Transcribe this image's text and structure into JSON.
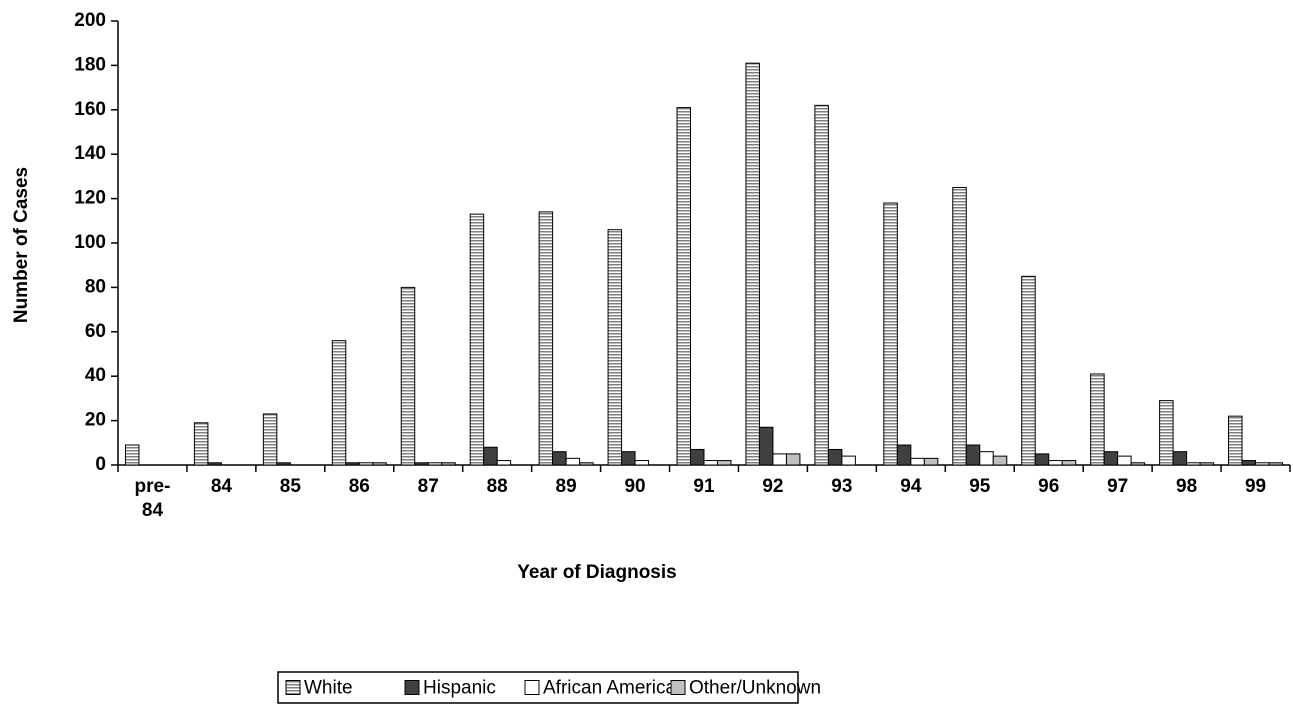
{
  "chart_data": {
    "type": "bar",
    "xlabel": "Year of Diagnosis",
    "ylabel": "Number of Cases",
    "categories": [
      "pre-84",
      "84",
      "85",
      "86",
      "87",
      "88",
      "89",
      "90",
      "91",
      "92",
      "93",
      "94",
      "95",
      "96",
      "97",
      "98",
      "99"
    ],
    "series": [
      {
        "name": "White",
        "color": "#d9d9d9",
        "hatch": true,
        "values": [
          9,
          19,
          23,
          56,
          80,
          113,
          114,
          106,
          161,
          181,
          162,
          118,
          125,
          85,
          41,
          29,
          22
        ]
      },
      {
        "name": "Hispanic",
        "color": "#404040",
        "values": [
          0,
          1,
          1,
          1,
          1,
          8,
          6,
          6,
          7,
          17,
          7,
          9,
          9,
          5,
          6,
          6,
          2
        ]
      },
      {
        "name": "African American",
        "color": "#ffffff",
        "values": [
          0,
          0,
          0,
          1,
          1,
          2,
          3,
          2,
          2,
          5,
          4,
          3,
          6,
          2,
          4,
          1,
          1
        ]
      },
      {
        "name": "Other/Unknown",
        "color": "#c0c0c0",
        "values": [
          0,
          0,
          0,
          1,
          1,
          0,
          1,
          0,
          2,
          5,
          0,
          3,
          4,
          2,
          1,
          1,
          1
        ]
      }
    ],
    "ylim": [
      0,
      200
    ],
    "yticks": [
      0,
      20,
      40,
      60,
      80,
      100,
      120,
      140,
      160,
      180,
      200
    ],
    "legend": "bottom"
  }
}
